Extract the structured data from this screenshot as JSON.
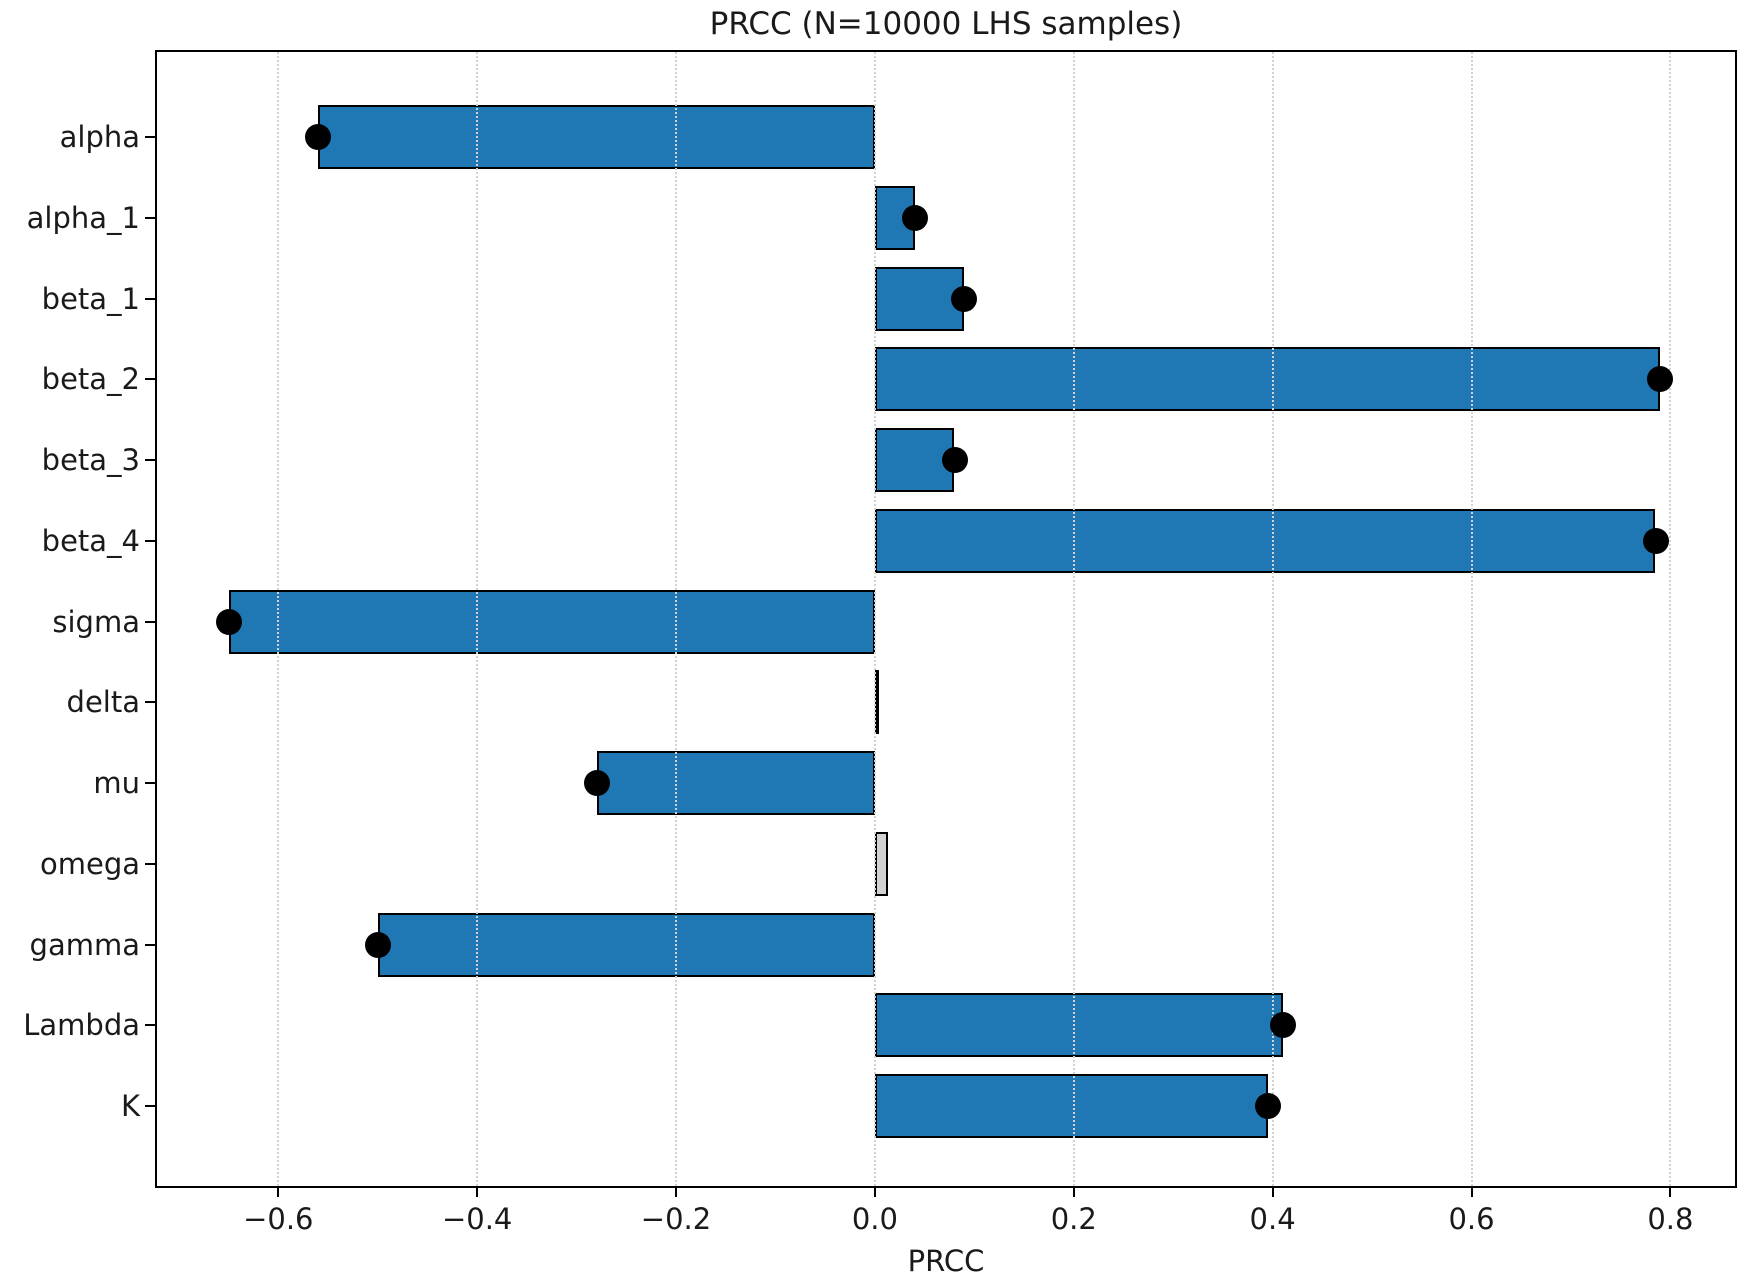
{
  "chart_data": {
    "type": "bar",
    "orientation": "horizontal",
    "title": "PRCC (N=10000 LHS samples)",
    "xlabel": "PRCC",
    "ylabel": "",
    "categories": [
      "alpha",
      "alpha_1",
      "beta_1",
      "beta_2",
      "beta_3",
      "beta_4",
      "sigma",
      "delta",
      "mu",
      "omega",
      "gamma",
      "Lambda",
      "K"
    ],
    "values": [
      -0.56,
      0.04,
      0.09,
      0.79,
      0.08,
      0.785,
      -0.65,
      0.002,
      -0.28,
      0.013,
      -0.5,
      0.41,
      0.395
    ],
    "marker_shown": [
      true,
      true,
      true,
      true,
      true,
      true,
      true,
      false,
      true,
      false,
      true,
      true,
      true
    ],
    "colors": {
      "bar_significant": "#1f77b4",
      "bar_not_significant": "#d3d3d3",
      "bar_edge": "#000000",
      "marker": "#000000",
      "grid": "#d2d2d2"
    },
    "xlim": [
      -0.722,
      0.865
    ],
    "xticks": [
      -0.6,
      -0.4,
      -0.2,
      0.0,
      0.2,
      0.4,
      0.6,
      0.8
    ],
    "grid": "vertical-dotted",
    "legend": "none"
  }
}
